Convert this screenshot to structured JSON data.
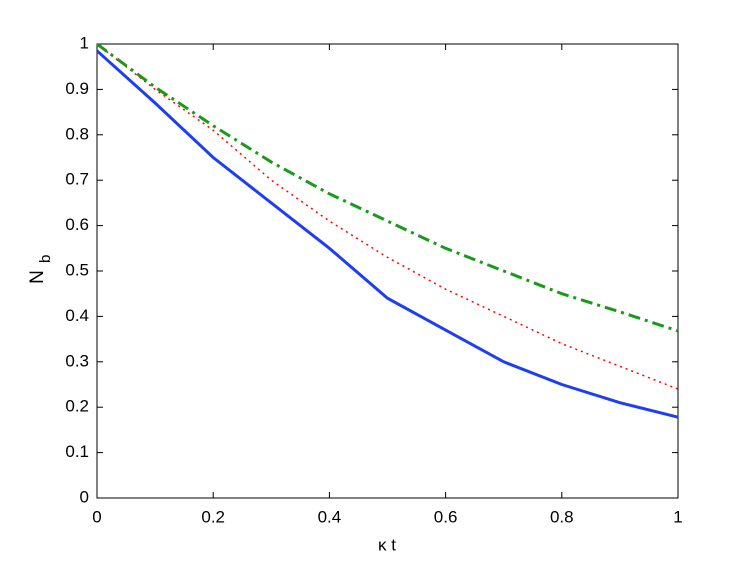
{
  "chart_data": {
    "type": "line",
    "xlabel": "κ t",
    "ylabel": {
      "text": "N",
      "subscript": "b"
    },
    "x": [
      0,
      0.1,
      0.2,
      0.3,
      0.4,
      0.5,
      0.6,
      0.7,
      0.8,
      0.9,
      1
    ],
    "series": [
      {
        "color": "#1f3fef",
        "style": "solid",
        "values": [
          0.985,
          0.87,
          0.75,
          0.65,
          0.55,
          0.44,
          0.37,
          0.3,
          0.25,
          0.21,
          0.178
        ]
      },
      {
        "color": "#ff0000",
        "style": "dotted",
        "values": [
          1,
          0.9,
          0.81,
          0.7,
          0.61,
          0.53,
          0.46,
          0.4,
          0.34,
          0.29,
          0.24
        ]
      },
      {
        "color": "#1a9a1a",
        "style": "dashdot",
        "values": [
          1,
          0.905,
          0.82,
          0.74,
          0.67,
          0.61,
          0.55,
          0.5,
          0.45,
          0.41,
          0.368
        ]
      }
    ],
    "xlim": [
      0,
      1
    ],
    "xticks": [
      0,
      0.2,
      0.4,
      0.6,
      0.8,
      1
    ],
    "ylim": [
      0,
      1
    ],
    "yticks": [
      0,
      0.1,
      0.2,
      0.3,
      0.4,
      0.5,
      0.6,
      0.7,
      0.8,
      0.9,
      1
    ],
    "grid": false
  }
}
